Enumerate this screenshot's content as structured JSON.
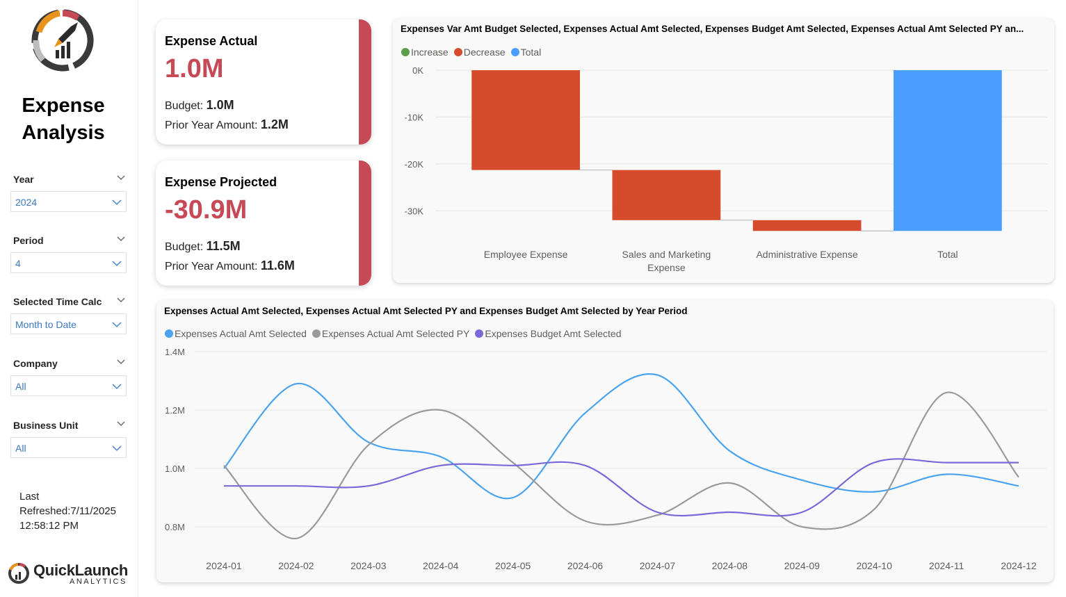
{
  "sidebar": {
    "title_line1": "Expense",
    "title_line2": "Analysis",
    "slicers": [
      {
        "label": "Year",
        "value": "2024"
      },
      {
        "label": "Period",
        "value": "4"
      },
      {
        "label": "Selected Time Calc",
        "value": "Month to Date"
      },
      {
        "label": "Company",
        "value": "All"
      },
      {
        "label": "Business Unit",
        "value": "All"
      }
    ],
    "refreshed_line1": "Last",
    "refreshed_line2": "Refreshed:7/11/2025",
    "refreshed_line3": "12:58:12 PM",
    "brand_name": "QuickLaunch",
    "brand_sub": "ANALYTICS"
  },
  "kpis": {
    "actual": {
      "title": "Expense Actual",
      "value": "1.0M",
      "budget_label": "Budget:",
      "budget_value": "1.0M",
      "prior_label": "Prior Year Amount:",
      "prior_value": "1.2M"
    },
    "projected": {
      "title": "Expense Projected",
      "value": "-30.9M",
      "budget_label": "Budget:",
      "budget_value": "11.5M",
      "prior_label": "Prior Year Amount:",
      "prior_value": "11.6M"
    }
  },
  "colors": {
    "accent": "#c54a55",
    "increase": "#5a9e4b",
    "decrease": "#d64b2c",
    "total": "#4a9eff",
    "actual": "#4aa3ee",
    "actual_py": "#9a9a9a",
    "budget": "#7b68d8"
  },
  "chart_data": [
    {
      "type": "bar",
      "subtype": "waterfall",
      "title": "Expenses Var Amt Budget Selected, Expenses Actual Amt Selected, Expenses Budget Amt Selected, Expenses Actual Amt Selected PY an...",
      "legend": [
        "Increase",
        "Decrease",
        "Total"
      ],
      "categories": [
        "Employee Expense",
        "Sales and Marketing Expense",
        "Administrative Expense",
        "Total"
      ],
      "category_lines": [
        [
          "Employee Expense"
        ],
        [
          "Sales and Marketing",
          "Expense"
        ],
        [
          "Administrative Expense"
        ],
        [
          "Total"
        ]
      ],
      "values": [
        -21300,
        -10700,
        -2300,
        -34300
      ],
      "kinds": [
        "decrease",
        "decrease",
        "decrease",
        "total"
      ],
      "yticks": [
        "0K",
        "-10K",
        "-20K",
        "-30K"
      ],
      "ylim": [
        -35000,
        0
      ]
    },
    {
      "type": "line",
      "title": "Expenses Actual Amt Selected, Expenses Actual Amt Selected PY and Expenses Budget Amt Selected by Year Period",
      "x": [
        "2024-01",
        "2024-02",
        "2024-03",
        "2024-04",
        "2024-05",
        "2024-06",
        "2024-07",
        "2024-08",
        "2024-09",
        "2024-10",
        "2024-11",
        "2024-12"
      ],
      "yticks": [
        "1.4M",
        "1.2M",
        "1.0M",
        "0.8M"
      ],
      "ylim": [
        0.8,
        1.4
      ],
      "series": [
        {
          "name": "Expenses Actual Amt Selected",
          "values": [
            1.0,
            1.29,
            1.09,
            1.04,
            0.9,
            1.19,
            1.32,
            1.06,
            0.96,
            0.92,
            0.98,
            0.94
          ]
        },
        {
          "name": "Expenses Actual Amt Selected PY",
          "values": [
            1.01,
            0.76,
            1.08,
            1.2,
            1.02,
            0.82,
            0.84,
            0.95,
            0.8,
            0.86,
            1.26,
            0.97
          ]
        },
        {
          "name": "Expenses Budget Amt Selected",
          "values": [
            0.94,
            0.94,
            0.94,
            1.01,
            1.01,
            1.01,
            0.85,
            0.85,
            0.85,
            1.02,
            1.02,
            1.02
          ]
        }
      ]
    }
  ]
}
